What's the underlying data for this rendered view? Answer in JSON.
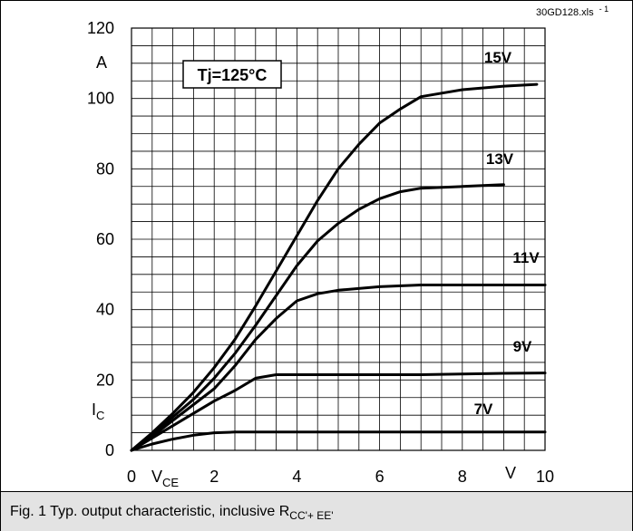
{
  "chart_data": {
    "type": "line",
    "file_label": "30GD128.xls",
    "file_suffix": "- 1",
    "annotation": "Tj=125°C",
    "x_axis": {
      "quantity": "V",
      "subscript": "CE",
      "unit": "V",
      "range": [
        0,
        10
      ],
      "ticks": [
        "0",
        "2",
        "4",
        "6",
        "8",
        "10"
      ]
    },
    "y_axis": {
      "quantity": "I",
      "subscript": "C",
      "unit": "A",
      "range": [
        0,
        120
      ],
      "ticks": [
        "0",
        "20",
        "40",
        "60",
        "80",
        "100",
        "120"
      ]
    },
    "grid": true,
    "series": [
      {
        "name": "15V",
        "x": [
          0,
          0.5,
          1,
          1.5,
          2,
          2.5,
          3,
          3.5,
          4,
          4.5,
          5,
          5.5,
          6,
          6.5,
          7,
          8,
          9,
          9.8
        ],
        "y": [
          0,
          5,
          10.5,
          16.5,
          23.5,
          31.5,
          41,
          51,
          61,
          71,
          80,
          87,
          93,
          97,
          100.5,
          102.5,
          103.5,
          104
        ]
      },
      {
        "name": "13V",
        "x": [
          0,
          0.5,
          1,
          1.5,
          2,
          2.5,
          3,
          3.5,
          4,
          4.5,
          5,
          5.5,
          6,
          6.5,
          7,
          8,
          9
        ],
        "y": [
          0,
          4.5,
          9.5,
          14.5,
          20.5,
          27.5,
          35.5,
          44,
          52.5,
          59.5,
          64.5,
          68.5,
          71.5,
          73.5,
          74.5,
          75,
          75.5
        ]
      },
      {
        "name": "11V",
        "x": [
          0,
          0.5,
          1,
          1.5,
          2,
          2.5,
          3,
          3.5,
          4,
          4.5,
          5,
          6,
          7,
          8,
          9,
          10
        ],
        "y": [
          0,
          4,
          8.5,
          13,
          17.5,
          24,
          31.5,
          37.5,
          42.5,
          44.5,
          45.5,
          46.5,
          47,
          47,
          47,
          47
        ]
      },
      {
        "name": "9V",
        "x": [
          0,
          0.5,
          1,
          1.5,
          2,
          2.5,
          3,
          3.5,
          4,
          5,
          6,
          7,
          8,
          9,
          10
        ],
        "y": [
          0,
          3.5,
          7,
          10.5,
          14,
          17,
          20.5,
          21.5,
          21.5,
          21.5,
          21.5,
          21.5,
          21.7,
          21.9,
          22
        ]
      },
      {
        "name": "7V",
        "x": [
          0,
          0.5,
          1,
          1.5,
          2,
          2.5,
          3,
          4,
          5,
          6,
          7,
          8,
          9,
          10
        ],
        "y": [
          0,
          1.8,
          3.2,
          4.3,
          5,
          5.2,
          5.2,
          5.2,
          5.2,
          5.2,
          5.2,
          5.2,
          5.2,
          5.2
        ]
      }
    ]
  },
  "caption": {
    "text": "Fig. 1 Typ. output characteristic, inclusive R",
    "subscript": "CC'+ EE'"
  }
}
